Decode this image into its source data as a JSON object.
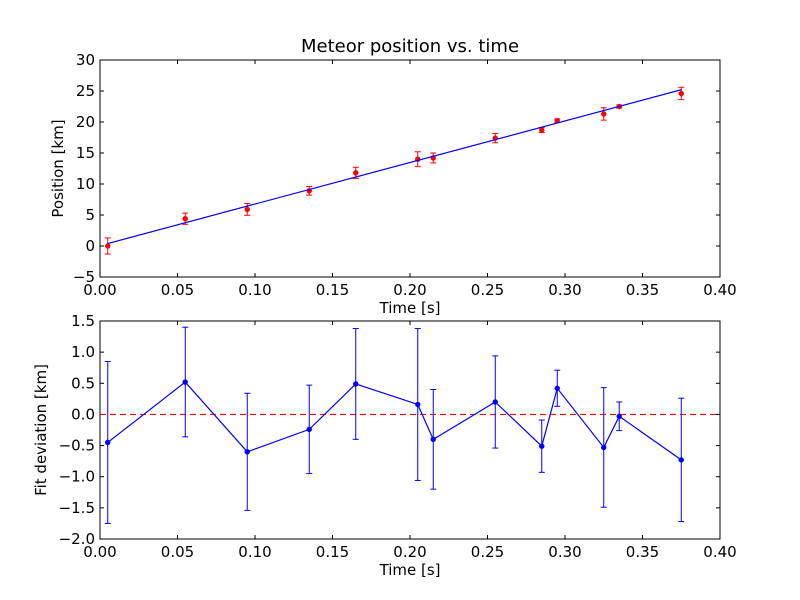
{
  "chart_data": [
    {
      "type": "scatter",
      "title": "Meteor position vs. time",
      "xlabel": "Time [s]",
      "ylabel": "Position [km]",
      "xlim": [
        0.0,
        0.4
      ],
      "ylim": [
        -5,
        30
      ],
      "xticks": [
        0.0,
        0.05,
        0.1,
        0.15,
        0.2,
        0.25,
        0.3,
        0.35,
        0.4
      ],
      "xtick_labels": [
        "0.00",
        "0.05",
        "0.10",
        "0.15",
        "0.20",
        "0.25",
        "0.30",
        "0.35",
        "0.40"
      ],
      "yticks": [
        -5,
        0,
        5,
        10,
        15,
        20,
        25,
        30
      ],
      "ytick_labels": [
        "−5",
        "0",
        "5",
        "10",
        "15",
        "20",
        "25",
        "30"
      ],
      "grid": false,
      "series": [
        {
          "kind": "errorbar",
          "color": "#ff0000",
          "x": [
            0.005,
            0.055,
            0.095,
            0.135,
            0.165,
            0.205,
            0.215,
            0.255,
            0.285,
            0.295,
            0.325,
            0.335,
            0.375
          ],
          "y": [
            0.0,
            4.4,
            5.9,
            8.9,
            11.8,
            14.0,
            14.2,
            17.4,
            18.7,
            20.2,
            21.3,
            22.5,
            24.6
          ],
          "yerr": [
            1.3,
            0.9,
            0.95,
            0.7,
            0.9,
            1.2,
            0.8,
            0.75,
            0.4,
            0.3,
            1.0,
            0.25,
            1.0
          ]
        },
        {
          "kind": "fit-line",
          "color": "#0000ff",
          "x": [
            0.005,
            0.375
          ],
          "y": [
            0.4,
            25.2
          ]
        }
      ]
    },
    {
      "type": "line",
      "xlabel": "Time [s]",
      "ylabel": "Fit deviation [km]",
      "xlim": [
        0.0,
        0.4
      ],
      "ylim": [
        -2.0,
        1.5
      ],
      "xticks": [
        0.0,
        0.05,
        0.1,
        0.15,
        0.2,
        0.25,
        0.3,
        0.35,
        0.4
      ],
      "xtick_labels": [
        "0.00",
        "0.05",
        "0.10",
        "0.15",
        "0.20",
        "0.25",
        "0.30",
        "0.35",
        "0.40"
      ],
      "yticks": [
        -2.0,
        -1.5,
        -1.0,
        -0.5,
        0.0,
        0.5,
        1.0,
        1.5
      ],
      "ytick_labels": [
        "−2.0",
        "−1.5",
        "−1.0",
        "−0.5",
        "0.0",
        "0.5",
        "1.0",
        "1.5"
      ],
      "grid": false,
      "reference_line": {
        "y": 0.0,
        "color": "#ff0000",
        "style": "dashed"
      },
      "series": [
        {
          "kind": "errorbar-line",
          "color": "#0000ff",
          "x": [
            0.005,
            0.055,
            0.095,
            0.135,
            0.165,
            0.205,
            0.215,
            0.255,
            0.285,
            0.295,
            0.325,
            0.335,
            0.375
          ],
          "y": [
            -0.45,
            0.52,
            -0.6,
            -0.24,
            0.49,
            0.16,
            -0.4,
            0.2,
            -0.51,
            0.42,
            -0.53,
            -0.03,
            -0.73
          ],
          "yerr": [
            1.3,
            0.88,
            0.94,
            0.71,
            0.89,
            1.22,
            0.8,
            0.74,
            0.42,
            0.29,
            0.96,
            0.23,
            0.99
          ]
        }
      ]
    }
  ]
}
